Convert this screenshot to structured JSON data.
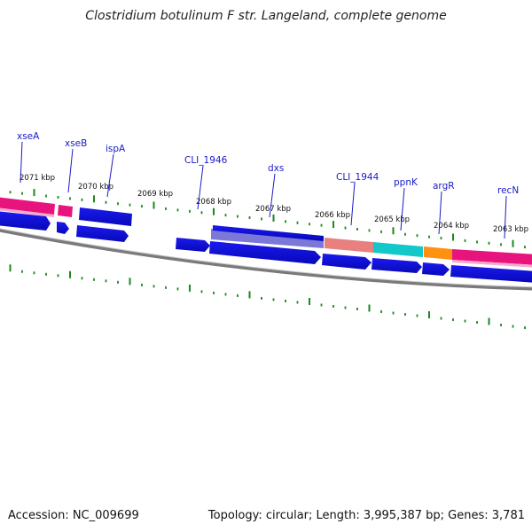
{
  "title": "Clostridium botulinum F str. Langeland, complete genome",
  "footer": {
    "accession": "Accession: NC_009699",
    "stats": "Topology: circular; Length: 3,995,387 bp; Genes: 3,781"
  },
  "gene_labels": [
    "xseA",
    "xseB",
    "ispA",
    "CLI_1946",
    "dxs",
    "CLI_1944",
    "ppnK",
    "argR",
    "recN"
  ],
  "position_labels": [
    "2071 kbp",
    "2070 kbp",
    "2069 kbp",
    "2068 kbp",
    "2067 kbp",
    "2066 kbp",
    "2065 kbp",
    "2064 kbp",
    "2063 kbp"
  ],
  "colors": {
    "gene_blue": "#1010e0",
    "feature_pink": "#e8147e",
    "feature_lavender": "#7b78d8",
    "feature_salmon": "#e88080",
    "feature_cyan": "#12c8c8",
    "feature_orange": "#ff9010",
    "tick_green": "#1a8a1a",
    "backbone_gray": "#808080",
    "label_blue": "#1a1ac8"
  }
}
